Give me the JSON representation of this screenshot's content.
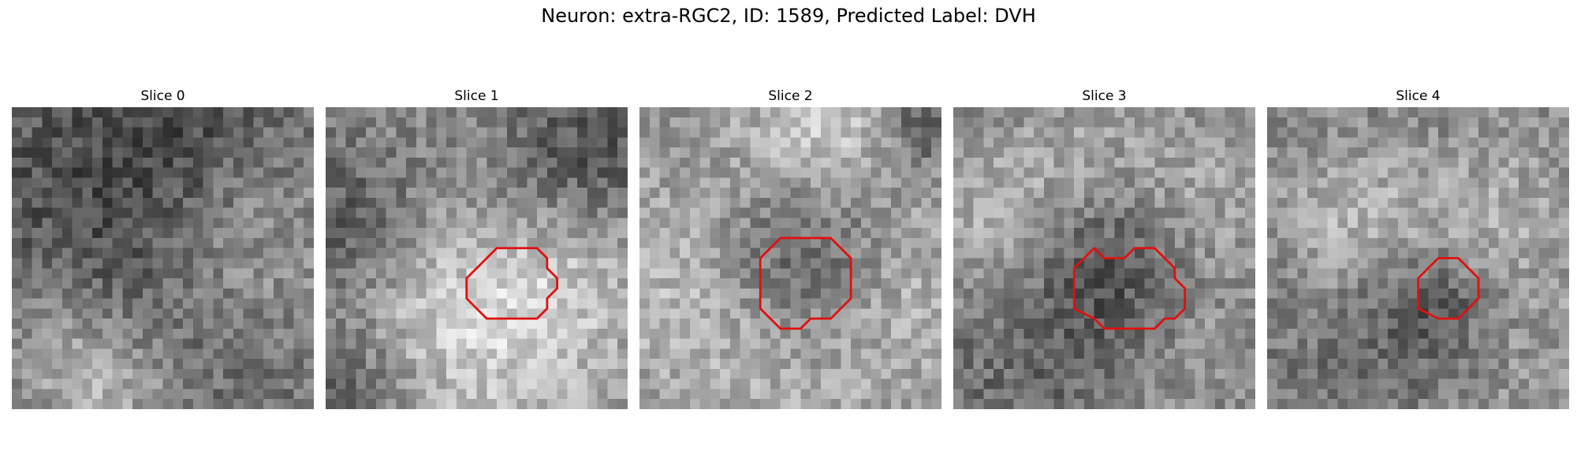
{
  "figure": {
    "title": "Neuron: extra-RGC2, ID: 1589, Predicted Label: DVH"
  },
  "panels": [
    {
      "title": "Slice 0",
      "roi": null,
      "seed": 11,
      "base": 120,
      "blobs": [
        [
          0.3,
          0.25,
          0.35,
          -40
        ],
        [
          0.75,
          0.45,
          0.25,
          50
        ],
        [
          0.15,
          0.8,
          0.18,
          45
        ],
        [
          0.6,
          0.1,
          0.2,
          -30
        ],
        [
          0.5,
          0.7,
          0.3,
          -25
        ],
        [
          0.35,
          0.95,
          0.15,
          55
        ]
      ]
    },
    {
      "title": "Slice 1",
      "roi": [
        [
          19,
          14
        ],
        [
          21,
          14
        ],
        [
          21,
          14
        ],
        [
          22,
          15
        ],
        [
          22,
          16
        ],
        [
          23,
          17
        ],
        [
          23,
          17
        ],
        [
          23,
          18
        ],
        [
          22,
          19
        ],
        [
          22,
          20
        ],
        [
          21,
          21
        ],
        [
          19,
          21
        ],
        [
          17,
          21
        ],
        [
          16,
          21
        ],
        [
          15,
          20
        ],
        [
          14,
          19
        ],
        [
          14,
          17
        ],
        [
          15,
          16
        ],
        [
          16,
          15
        ],
        [
          17,
          14
        ]
      ],
      "seed": 23,
      "base": 140,
      "blobs": [
        [
          0.5,
          0.5,
          0.12,
          -10
        ],
        [
          0.1,
          0.4,
          0.2,
          -60
        ],
        [
          0.85,
          0.15,
          0.2,
          -60
        ],
        [
          0.55,
          0.85,
          0.3,
          50
        ],
        [
          0.35,
          0.55,
          0.2,
          45
        ],
        [
          0.8,
          0.55,
          0.2,
          40
        ],
        [
          0.1,
          0.95,
          0.15,
          -50
        ]
      ]
    },
    {
      "title": "Slice 2",
      "roi": [
        [
          14,
          13
        ],
        [
          19,
          13
        ],
        [
          21,
          15
        ],
        [
          21,
          19
        ],
        [
          19,
          21
        ],
        [
          17,
          21
        ],
        [
          16,
          22
        ],
        [
          14,
          22
        ],
        [
          12,
          20
        ],
        [
          12,
          15
        ]
      ],
      "seed": 37,
      "base": 150,
      "blobs": [
        [
          0.55,
          0.5,
          0.22,
          -75
        ],
        [
          0.6,
          0.1,
          0.18,
          60
        ],
        [
          0.2,
          0.6,
          0.25,
          40
        ],
        [
          0.85,
          0.6,
          0.2,
          40
        ],
        [
          0.5,
          0.9,
          0.25,
          20
        ],
        [
          0.95,
          0.05,
          0.1,
          -70
        ]
      ]
    },
    {
      "title": "Slice 3",
      "roi": [
        [
          15,
          15
        ],
        [
          17,
          15
        ],
        [
          18,
          14
        ],
        [
          20,
          14
        ],
        [
          21,
          15
        ],
        [
          22,
          16
        ],
        [
          22,
          17
        ],
        [
          23,
          18
        ],
        [
          23,
          20
        ],
        [
          22,
          21
        ],
        [
          21,
          21
        ],
        [
          20,
          22
        ],
        [
          17,
          22
        ],
        [
          15,
          22
        ],
        [
          14,
          21
        ],
        [
          12,
          20
        ],
        [
          12,
          16
        ],
        [
          13,
          15
        ],
        [
          14,
          14
        ]
      ],
      "seed": 53,
      "base": 125,
      "blobs": [
        [
          0.53,
          0.55,
          0.2,
          -55
        ],
        [
          0.15,
          0.35,
          0.2,
          55
        ],
        [
          0.85,
          0.3,
          0.2,
          40
        ],
        [
          0.5,
          0.05,
          0.2,
          30
        ],
        [
          0.25,
          0.85,
          0.2,
          -20
        ],
        [
          0.8,
          0.8,
          0.2,
          30
        ]
      ]
    },
    {
      "title": "Slice 4",
      "roi": [
        [
          17,
          15
        ],
        [
          19,
          15
        ],
        [
          21,
          17
        ],
        [
          21,
          19
        ],
        [
          19,
          21
        ],
        [
          17,
          21
        ],
        [
          15,
          20
        ],
        [
          15,
          17
        ]
      ],
      "seed": 71,
      "base": 135,
      "blobs": [
        [
          0.55,
          0.65,
          0.16,
          -60
        ],
        [
          0.3,
          0.4,
          0.2,
          60
        ],
        [
          0.75,
          0.35,
          0.2,
          40
        ],
        [
          0.2,
          0.7,
          0.25,
          -25
        ],
        [
          0.85,
          0.8,
          0.2,
          20
        ],
        [
          0.5,
          0.1,
          0.2,
          -10
        ]
      ]
    }
  ],
  "colors": {
    "roi": "#e01010",
    "background": "#ffffff"
  }
}
